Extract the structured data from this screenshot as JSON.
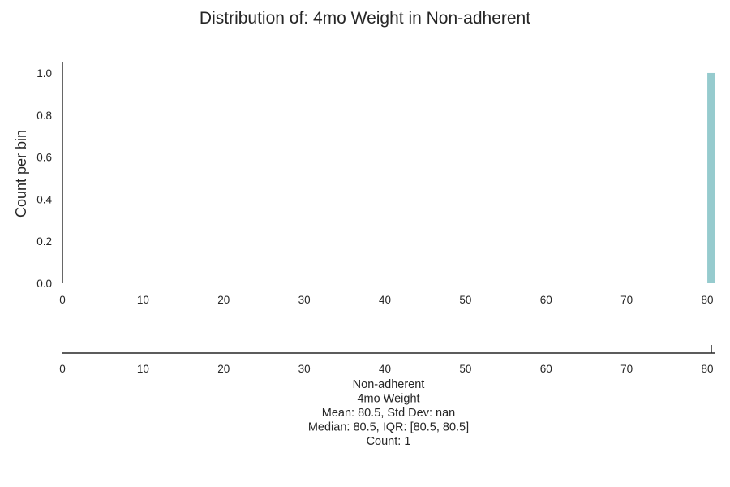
{
  "chart_data": {
    "type": "bar",
    "title": "Distribution of: 4mo Weight in Non-adherent",
    "ylabel": "Count per bin",
    "xlabel": "",
    "xlim": [
      0,
      81
    ],
    "ylim": [
      0,
      1.05
    ],
    "x_ticks": [
      "0",
      "10",
      "20",
      "30",
      "40",
      "50",
      "60",
      "70",
      "80"
    ],
    "y_ticks": [
      "0.0",
      "0.2",
      "0.4",
      "0.6",
      "0.8",
      "1.0"
    ],
    "bins": [
      {
        "x_start": 80.0,
        "x_end": 81.0,
        "count": 1
      }
    ],
    "rug": {
      "values": [
        80.5
      ]
    },
    "bar_color": "#96cbce",
    "caption_lines": [
      "Non-adherent",
      "4mo Weight",
      "Mean: 80.5, Std Dev: nan",
      "Median: 80.5, IQR: [80.5, 80.5]",
      "Count: 1"
    ]
  }
}
